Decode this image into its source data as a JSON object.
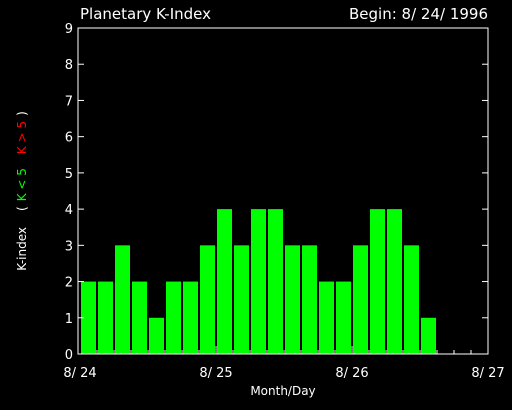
{
  "chart_data": {
    "type": "bar",
    "title": "Planetary K-Index",
    "begin_label": "Begin: 8/ 24/ 1996",
    "xlabel": "Month/Day",
    "ylabel": {
      "prefix": "K-index",
      "paren_open": "(",
      "low_text": "K < 5",
      "high_text": "K > 5",
      "paren_close": ")"
    },
    "xticks": [
      "8/ 24",
      "8/ 25",
      "8/ 26",
      "8/ 27"
    ],
    "yticks": [
      "0",
      "1",
      "2",
      "3",
      "4",
      "5",
      "6",
      "7",
      "8",
      "9"
    ],
    "ylim": [
      0,
      9
    ],
    "bins_per_day": 8,
    "days": 3,
    "values": [
      2,
      2,
      3,
      2,
      1,
      2,
      2,
      3,
      4,
      3,
      4,
      4,
      3,
      3,
      2,
      2,
      3,
      4,
      4,
      3,
      1
    ],
    "threshold": 5,
    "colors": {
      "background": "#000000",
      "axis": "#ffffff",
      "bar_low": "#00ff00",
      "bar_high": "#ff0000",
      "text": "#ffffff"
    }
  }
}
